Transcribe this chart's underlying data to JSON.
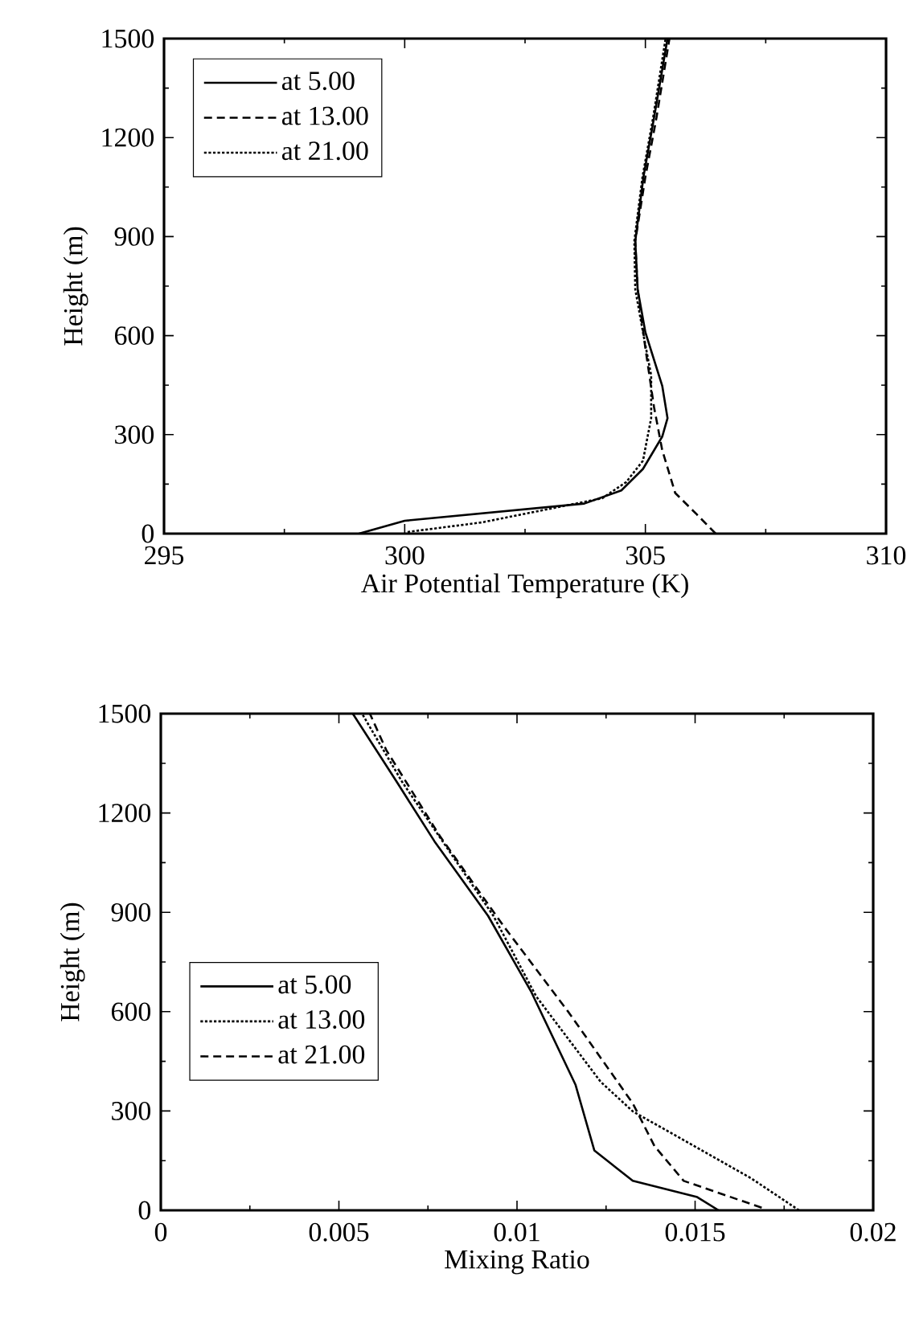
{
  "chart_data": [
    {
      "type": "line",
      "xlabel": "Air Potential Temperature (K)",
      "ylabel": "Height (m)",
      "xlim": [
        295,
        310
      ],
      "ylim": [
        0,
        1500
      ],
      "xticks": [
        295,
        300,
        305,
        310
      ],
      "yticks": [
        0,
        300,
        600,
        900,
        1200,
        1500
      ],
      "grid": false,
      "legend": "top left",
      "marker": "none",
      "series": [
        {
          "name": "at 5.00",
          "color": "#000000",
          "line_style": "solid",
          "x": [
            299.05,
            300.0,
            303.73,
            304.5,
            304.95,
            305.35,
            305.46,
            305.35,
            305.0,
            304.84,
            304.79,
            304.96,
            305.18,
            305.46
          ],
          "values": [
            0,
            39,
            91,
            131,
            196,
            294,
            350,
            448,
            610,
            740,
            886,
            1081,
            1260,
            1500
          ]
        },
        {
          "name": "at 13.00",
          "color": "#000000",
          "line_style": "dashed",
          "x": [
            306.46,
            306.07,
            305.62,
            305.35,
            305.18,
            305.0,
            304.84,
            304.79,
            305.0,
            305.23,
            305.5
          ],
          "values": [
            0,
            58,
            123,
            253,
            383,
            562,
            740,
            886,
            1081,
            1260,
            1500
          ]
        },
        {
          "name": "at 21.00",
          "color": "#000000",
          "line_style": "dotted",
          "x": [
            300.06,
            301.6,
            304.1,
            304.6,
            304.95,
            305.12,
            305.12,
            304.95,
            304.79,
            304.77,
            304.94,
            305.16,
            305.42
          ],
          "values": [
            5,
            34,
            107,
            156,
            221,
            350,
            480,
            610,
            740,
            886,
            1081,
            1260,
            1500
          ]
        }
      ]
    },
    {
      "type": "line",
      "xlabel": "Mixing Ratio",
      "ylabel": "Height (m)",
      "xlim": [
        0,
        0.02
      ],
      "ylim": [
        0,
        1500
      ],
      "xticks": [
        0,
        0.005,
        0.01,
        0.015,
        0.02
      ],
      "yticks": [
        0,
        300,
        600,
        900,
        1200,
        1500
      ],
      "grid": false,
      "legend": "left",
      "marker": "none",
      "series": [
        {
          "name": "at 5.00",
          "color": "#000000",
          "line_style": "solid",
          "x": [
            0.01566,
            0.01506,
            0.01325,
            0.01217,
            0.01164,
            0.01039,
            0.00919,
            0.00768,
            0.00663,
            0.00539
          ],
          "values": [
            0,
            40,
            89,
            181,
            380,
            662,
            889,
            1115,
            1293,
            1500
          ]
        },
        {
          "name": "at 13.00",
          "color": "#000000",
          "line_style": "dotted",
          "x": [
            0.01792,
            0.01657,
            0.01325,
            0.01235,
            0.01054,
            0.00934,
            0.00678,
            0.00565
          ],
          "values": [
            0,
            97,
            299,
            388,
            646,
            889,
            1293,
            1500
          ]
        },
        {
          "name": "at 21.00",
          "color": "#000000",
          "line_style": "dashed",
          "x": [
            0.01687,
            0.01468,
            0.01386,
            0.01325,
            0.01145,
            0.00964,
            0.00783,
            0.00633,
            0.00587
          ],
          "values": [
            8,
            89,
            194,
            323,
            598,
            856,
            1131,
            1390,
            1500
          ]
        }
      ]
    }
  ]
}
